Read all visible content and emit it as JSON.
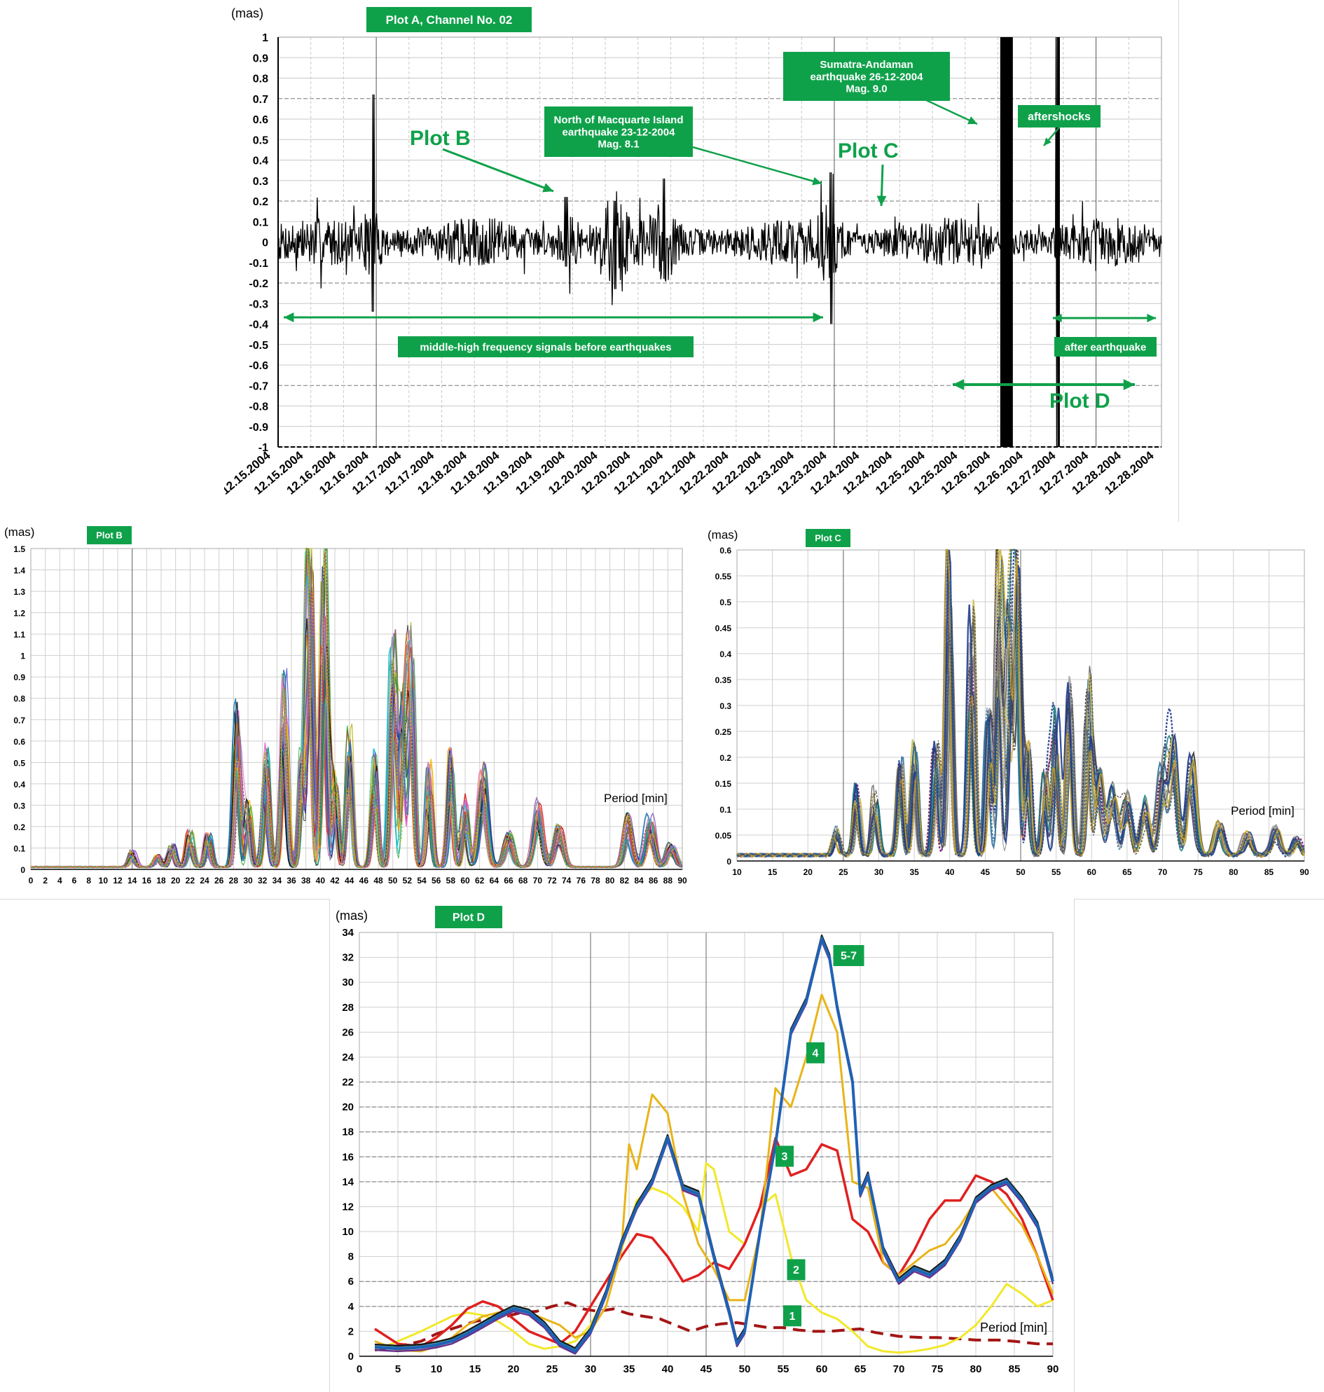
{
  "colors": {
    "green": "#0fa14a",
    "signal": "#000000"
  },
  "chart_data": [
    {
      "id": "plotA",
      "type": "line",
      "title": "Plot A, Channel No. 02",
      "ylabel": "(mas)",
      "ylim": [
        -1,
        1
      ],
      "yticks": [
        "1",
        "0.9",
        "0.8",
        "0.7",
        "0.6",
        "0.5",
        "0.4",
        "0.3",
        "0.2",
        "0.1",
        "0",
        "-0.1",
        "-0.2",
        "-0.3",
        "-0.4",
        "-0.5",
        "-0.6",
        "-0.7",
        "-0.8",
        "-0.9",
        "-1"
      ],
      "x_tick_labels": [
        "12.15.2004",
        "12.15.2004",
        "12.16.2004",
        "12.16.2004",
        "12.17.2004",
        "12.17.2004",
        "12.18.2004",
        "12.18.2004",
        "12.19.2004",
        "12.19.2004",
        "12.20.2004",
        "12.20.2004",
        "12.21.2004",
        "12.21.2004",
        "12.22.2004",
        "12.22.2004",
        "12.23.2004",
        "12.23.2004",
        "12.24.2004",
        "12.24.2004",
        "12.25.2004",
        "12.25.2004",
        "12.26.2004",
        "12.26.2004",
        "12.27.2004",
        "12.27.2004",
        "12.28.2004",
        "12.28.2004"
      ],
      "spikes": [
        {
          "x": 2.9,
          "y_max": 0.72,
          "y_min": -0.34
        },
        {
          "x": 8.8,
          "y_max": 0.22,
          "y_min": -0.12
        },
        {
          "x": 10.3,
          "y_max": 0.2,
          "y_min": -0.23
        },
        {
          "x": 11.8,
          "y_max": 0.31,
          "y_min": -0.18
        },
        {
          "x": 16.9,
          "y_max": 0.34,
          "y_min": -0.4
        },
        {
          "x": 22.2,
          "y_max": 1.0,
          "y_min": -1.0
        },
        {
          "x": 23.8,
          "y_max": 1.0,
          "y_min": -1.0
        },
        {
          "x": 27.6,
          "y_max": 0.36,
          "y_min": -0.27
        }
      ],
      "annotations": {
        "plot_b": "Plot B",
        "plot_c": "Plot C",
        "plot_d": "Plot D",
        "macquarie": [
          "North of Macquarte Island",
          "earthquake 23-12-2004",
          "Mag. 8.1"
        ],
        "sumatra": [
          "Sumatra-Andaman",
          "earthquake 26-12-2004",
          "Mag. 9.0"
        ],
        "aftershocks": "aftershocks",
        "before": "middle-high frequency signals before earthquakes",
        "after": "after earthquake"
      }
    },
    {
      "id": "plotB",
      "type": "line",
      "title": "Plot B",
      "ylabel": "(mas)",
      "xlabel": "Period [min]",
      "xlim": [
        0,
        90
      ],
      "ylim": [
        0,
        1.5
      ],
      "xticks": [
        0,
        2,
        4,
        6,
        8,
        10,
        12,
        14,
        16,
        18,
        20,
        22,
        24,
        26,
        28,
        30,
        32,
        34,
        36,
        38,
        40,
        42,
        44,
        46,
        48,
        50,
        52,
        54,
        56,
        58,
        60,
        62,
        64,
        66,
        68,
        70,
        72,
        74,
        76,
        78,
        80,
        82,
        84,
        86,
        88,
        90
      ],
      "yticks": [
        0,
        0.1,
        0.2,
        0.3,
        0.4,
        0.5,
        0.6,
        0.7,
        0.8,
        0.9,
        1,
        1.1,
        1.2,
        1.3,
        1.4,
        1.5
      ],
      "peaks": [
        [
          14,
          0.07
        ],
        [
          17.5,
          0.05
        ],
        [
          19.5,
          0.1
        ],
        [
          22,
          0.15
        ],
        [
          24.5,
          0.14
        ],
        [
          28.5,
          0.7
        ],
        [
          30,
          0.28
        ],
        [
          32.5,
          0.52
        ],
        [
          35,
          0.82
        ],
        [
          37.5,
          0.52
        ],
        [
          38.5,
          1.45
        ],
        [
          40.5,
          1.42
        ],
        [
          42,
          0.4
        ],
        [
          44,
          0.6
        ],
        [
          47.5,
          0.5
        ],
        [
          50,
          0.98
        ],
        [
          51.5,
          0.75
        ],
        [
          52.5,
          1.0
        ],
        [
          55,
          0.45
        ],
        [
          58,
          0.5
        ],
        [
          60,
          0.3
        ],
        [
          62.5,
          0.44
        ],
        [
          66,
          0.15
        ],
        [
          70,
          0.28
        ],
        [
          73,
          0.18
        ],
        [
          82.5,
          0.23
        ],
        [
          85.5,
          0.22
        ],
        [
          88.5,
          0.1
        ]
      ],
      "series_count": 28
    },
    {
      "id": "plotC",
      "type": "line",
      "title": "Plot C",
      "ylabel": "(mas)",
      "xlabel": "Period [min]",
      "xlim": [
        10,
        90
      ],
      "ylim": [
        0,
        0.6
      ],
      "xticks": [
        10,
        15,
        20,
        25,
        30,
        35,
        40,
        45,
        50,
        55,
        60,
        65,
        70,
        75,
        80,
        85,
        90
      ],
      "yticks": [
        0,
        0.05,
        0.1,
        0.15,
        0.2,
        0.25,
        0.3,
        0.35,
        0.4,
        0.45,
        0.5,
        0.55,
        0.6
      ],
      "peaks": [
        [
          24,
          0.05
        ],
        [
          27,
          0.13
        ],
        [
          29.5,
          0.12
        ],
        [
          33,
          0.17
        ],
        [
          35,
          0.22
        ],
        [
          38,
          0.2
        ],
        [
          40,
          0.58
        ],
        [
          43,
          0.48
        ],
        [
          45.5,
          0.25
        ],
        [
          47,
          0.56
        ],
        [
          48.5,
          0.45
        ],
        [
          49.5,
          0.54
        ],
        [
          51,
          0.2
        ],
        [
          53.5,
          0.15
        ],
        [
          55,
          0.26
        ],
        [
          57,
          0.34
        ],
        [
          59.5,
          0.3
        ],
        [
          61,
          0.15
        ],
        [
          63,
          0.12
        ],
        [
          65,
          0.11
        ],
        [
          67.5,
          0.1
        ],
        [
          70,
          0.16
        ],
        [
          71.5,
          0.2
        ],
        [
          74,
          0.18
        ],
        [
          78,
          0.06
        ],
        [
          82,
          0.04
        ],
        [
          86,
          0.05
        ],
        [
          89,
          0.03
        ]
      ],
      "series_count": 18
    },
    {
      "id": "plotD",
      "type": "line",
      "title": "Plot D",
      "ylabel": "(mas)",
      "xlabel": "Period [min]",
      "xlim": [
        0,
        90
      ],
      "ylim": [
        0,
        34
      ],
      "xticks": [
        0,
        5,
        10,
        15,
        20,
        25,
        30,
        35,
        40,
        45,
        50,
        55,
        60,
        65,
        70,
        75,
        80,
        85,
        90
      ],
      "yticks": [
        0,
        2,
        4,
        6,
        8,
        10,
        12,
        14,
        16,
        18,
        20,
        22,
        24,
        26,
        28,
        30,
        32,
        34
      ],
      "series": [
        {
          "name": "1",
          "color": "#a31515",
          "dashed": true,
          "width": 4,
          "x": [
            2,
            5,
            8,
            10,
            13,
            15,
            17,
            19,
            21,
            23,
            25,
            27,
            29,
            31,
            33,
            35,
            37,
            39,
            41,
            43,
            45,
            47,
            49,
            51,
            53,
            55,
            57,
            59,
            61,
            63,
            65,
            67,
            70,
            73,
            75,
            78,
            80,
            83,
            85,
            88,
            90
          ],
          "y": [
            0.5,
            0.8,
            1.2,
            1.8,
            2.4,
            2.8,
            3.0,
            3.2,
            3.5,
            3.6,
            4.0,
            4.3,
            3.8,
            3.6,
            3.8,
            3.4,
            3.2,
            3.0,
            2.5,
            2.0,
            2.4,
            2.6,
            2.7,
            2.5,
            2.3,
            2.3,
            2.1,
            2.0,
            2.0,
            2.1,
            2.2,
            1.9,
            1.6,
            1.5,
            1.5,
            1.4,
            1.3,
            1.3,
            1.2,
            1.0,
            1.0
          ]
        },
        {
          "name": "2",
          "color": "#f2e82a",
          "dashed": false,
          "width": 3,
          "x": [
            2,
            5,
            8,
            10,
            12,
            14,
            16,
            18,
            20,
            22,
            24,
            26,
            28,
            30,
            32,
            34,
            36,
            38,
            40,
            42,
            44,
            45,
            46,
            48,
            50,
            52,
            54,
            56,
            58,
            60,
            62,
            64,
            66,
            68,
            70,
            72,
            74,
            76,
            78,
            80,
            82,
            84,
            86,
            88,
            90
          ],
          "y": [
            0.5,
            1.2,
            2.0,
            2.6,
            3.2,
            3.5,
            3.3,
            2.8,
            2.0,
            1.0,
            0.6,
            0.8,
            1.2,
            2.5,
            5.0,
            8.5,
            12.5,
            13.5,
            13.0,
            12.0,
            10.0,
            15.5,
            15.0,
            10.0,
            9.0,
            12.0,
            13.0,
            8.0,
            4.5,
            3.5,
            3.0,
            2.0,
            0.8,
            0.4,
            0.3,
            0.4,
            0.6,
            0.9,
            1.5,
            2.5,
            4.0,
            5.8,
            5.0,
            4.0,
            4.5
          ]
        },
        {
          "name": "3",
          "color": "#e02020",
          "dashed": false,
          "width": 3.5,
          "x": [
            2,
            5,
            8,
            10,
            12,
            14,
            16,
            18,
            20,
            22,
            24,
            26,
            28,
            30,
            32,
            34,
            36,
            38,
            40,
            42,
            44,
            46,
            48,
            50,
            52,
            54,
            56,
            58,
            60,
            62,
            64,
            66,
            68,
            70,
            72,
            74,
            76,
            78,
            80,
            82,
            84,
            86,
            88,
            90
          ],
          "y": [
            2.2,
            1.0,
            0.8,
            1.5,
            2.5,
            3.8,
            4.4,
            4.0,
            3.0,
            2.0,
            1.5,
            1.0,
            2.0,
            4.0,
            6.0,
            8.0,
            9.8,
            9.5,
            8.0,
            6.0,
            6.5,
            7.5,
            7.0,
            9.0,
            12.0,
            17.5,
            14.5,
            15.0,
            17.0,
            16.5,
            11.0,
            10.0,
            7.5,
            6.5,
            8.5,
            11.0,
            12.5,
            12.5,
            14.5,
            14.0,
            13.0,
            11.0,
            8.0,
            4.5
          ]
        },
        {
          "name": "4",
          "color": "#e8b418",
          "dashed": false,
          "width": 3,
          "x": [
            2,
            5,
            8,
            10,
            12,
            14,
            16,
            18,
            20,
            22,
            24,
            26,
            28,
            30,
            32,
            34,
            35,
            36,
            38,
            40,
            42,
            44,
            46,
            48,
            50,
            52,
            54,
            56,
            58,
            60,
            62,
            64,
            66,
            68,
            70,
            72,
            74,
            76,
            78,
            80,
            82,
            84,
            86,
            88,
            90
          ],
          "y": [
            1.2,
            0.5,
            0.4,
            0.8,
            1.5,
            2.5,
            3.2,
            3.5,
            3.8,
            3.5,
            3.0,
            2.5,
            1.5,
            2.0,
            4.0,
            8.5,
            17.0,
            15.0,
            21.0,
            19.5,
            13.0,
            9.0,
            7.0,
            4.5,
            4.5,
            10.0,
            21.5,
            20.0,
            24.0,
            29.0,
            26.0,
            14.0,
            13.5,
            7.5,
            6.5,
            7.5,
            8.5,
            9.0,
            10.5,
            12.5,
            13.5,
            12.0,
            10.5,
            8.0,
            5.0
          ]
        },
        {
          "name": "5-7",
          "color": "#1f62b6",
          "dashed": false,
          "width": 4,
          "x": [
            2,
            5,
            8,
            10,
            12,
            14,
            16,
            18,
            20,
            22,
            24,
            26,
            28,
            30,
            32,
            34,
            36,
            38,
            40,
            42,
            44,
            46,
            48,
            49,
            50,
            52,
            54,
            56,
            58,
            60,
            61,
            62,
            64,
            65,
            66,
            68,
            70,
            72,
            74,
            76,
            78,
            80,
            82,
            84,
            86,
            88,
            90
          ],
          "y": [
            0.7,
            0.6,
            0.7,
            0.9,
            1.2,
            1.8,
            2.5,
            3.2,
            3.8,
            3.5,
            2.5,
            1.0,
            0.4,
            2.0,
            5.0,
            9.0,
            12.0,
            14.0,
            17.5,
            13.5,
            13.0,
            8.0,
            3.5,
            1.0,
            2.0,
            10.0,
            17.0,
            26.0,
            28.5,
            33.5,
            32.0,
            28.0,
            22.0,
            13.0,
            14.5,
            8.5,
            6.0,
            7.0,
            6.5,
            7.5,
            9.5,
            12.5,
            13.5,
            14.0,
            12.5,
            10.5,
            6.0
          ]
        }
      ],
      "labels": [
        "5-7",
        "4",
        "3",
        "2",
        "1"
      ]
    }
  ]
}
